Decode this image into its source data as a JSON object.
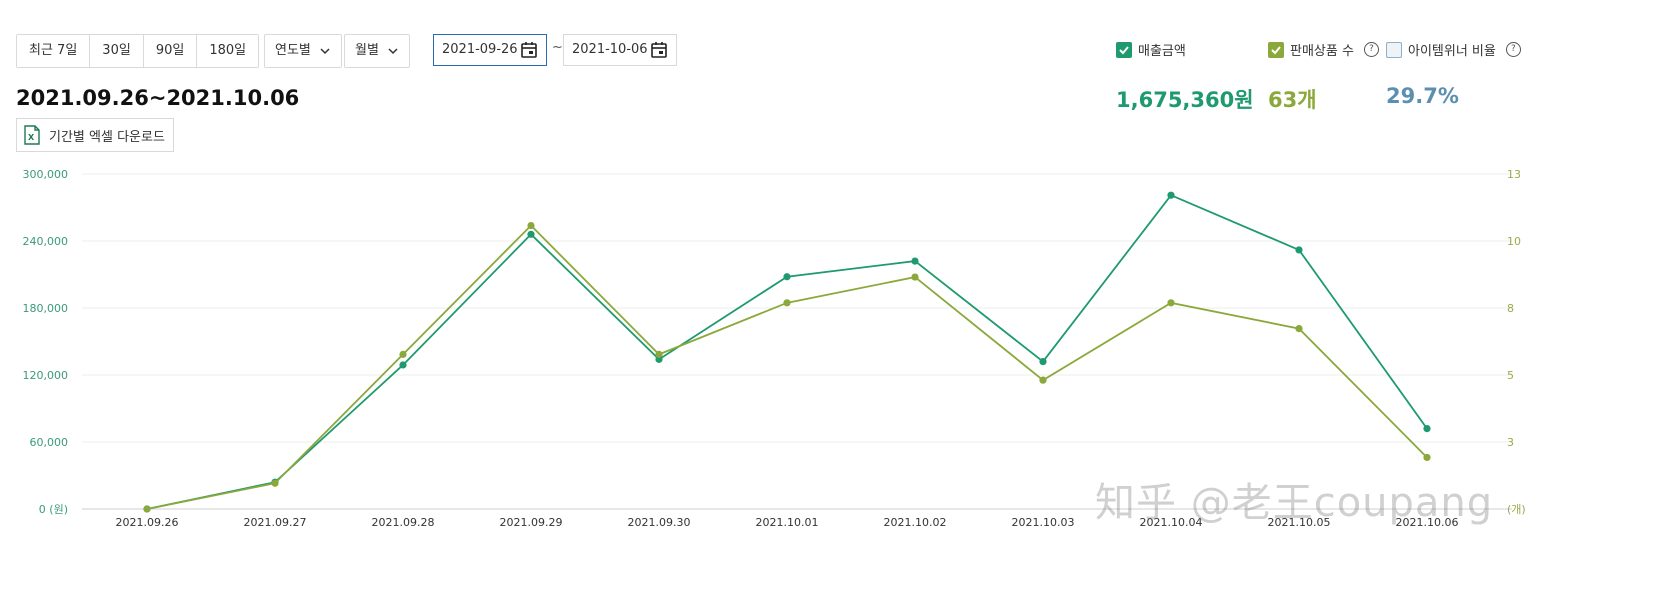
{
  "filters": {
    "quick_ranges": [
      "최근 7일",
      "30일",
      "90일",
      "180일"
    ],
    "yearly_dropdown": "연도별",
    "monthly_dropdown": "월별",
    "date_from": "2021-09-26",
    "date_tilde": "~",
    "date_to": "2021-10-06"
  },
  "period_title": "2021.09.26~2021.10.06",
  "excel_download_label": "기간별 엑셀 다운로드",
  "legend": {
    "sales_amount": {
      "label": "매출금액",
      "checked": true,
      "color": "#1e9a6e"
    },
    "items_sold": {
      "label": "판매상품 수",
      "checked": true,
      "color": "#8ba83a"
    },
    "item_winner_ratio": {
      "label": "아이템위너 비율",
      "checked": false,
      "color": "#5a8fb0"
    }
  },
  "stats": {
    "sales_amount": "1,675,360원",
    "items_sold": "63개",
    "item_winner_ratio": "29.7%"
  },
  "watermark": "知乎 @老王coupang",
  "chart_data": {
    "type": "line",
    "x": [
      "2021.09.26",
      "2021.09.27",
      "2021.09.28",
      "2021.09.29",
      "2021.09.30",
      "2021.10.01",
      "2021.10.02",
      "2021.10.03",
      "2021.10.04",
      "2021.10.05",
      "2021.10.06"
    ],
    "series": [
      {
        "name": "매출금액",
        "axis": "left",
        "color": "#1e9a6e",
        "values": [
          0,
          24000,
          129000,
          246000,
          134000,
          208000,
          222000,
          132000,
          281000,
          232000,
          72000
        ]
      },
      {
        "name": "판매상품 수",
        "axis": "right",
        "color": "#8ba83a",
        "values": [
          0,
          1,
          6,
          11,
          6,
          8,
          9,
          5,
          8,
          7,
          2
        ]
      }
    ],
    "left_axis": {
      "ticks": [
        "0 (원)",
        "60,000",
        "120,000",
        "180,000",
        "240,000",
        "300,000"
      ],
      "ylim": [
        0,
        300000
      ]
    },
    "right_axis": {
      "ticks": [
        "",
        "3",
        "5",
        "8",
        "10",
        "13"
      ],
      "unit_label": "(개)",
      "ylim": [
        0,
        13
      ]
    },
    "grid": true
  }
}
